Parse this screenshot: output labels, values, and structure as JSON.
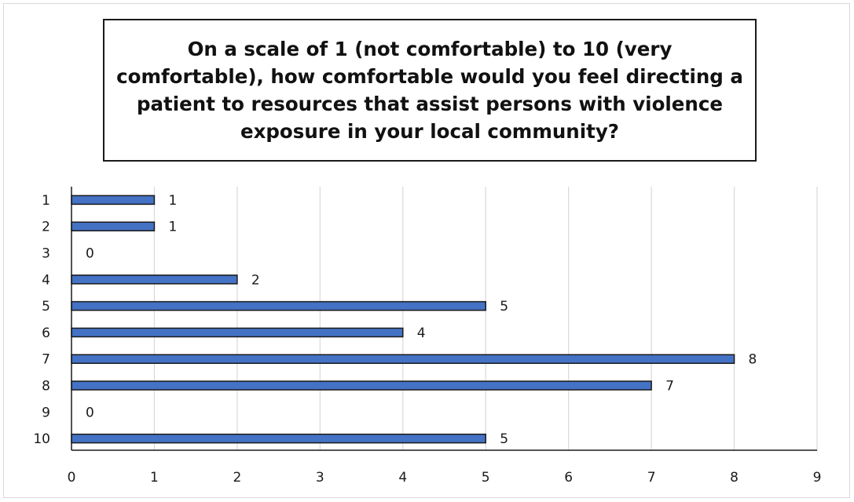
{
  "chart_data": {
    "type": "bar",
    "orientation": "horizontal",
    "title": "On a scale of 1 (not comfortable) to 10 (very comfortable), how comfortable would you feel directing a patient to resources that assist persons with violence exposure in your local community?",
    "xlabel": "",
    "ylabel": "",
    "categories": [
      "1",
      "2",
      "3",
      "4",
      "5",
      "6",
      "7",
      "8",
      "9",
      "10"
    ],
    "values": [
      1,
      1,
      0,
      2,
      5,
      4,
      8,
      7,
      0,
      5
    ],
    "data_labels": [
      "1",
      "1",
      "0",
      "2",
      "5",
      "4",
      "8",
      "7",
      "0",
      "5"
    ],
    "xlim": [
      0,
      9
    ],
    "x_ticks": [
      "0",
      "1",
      "2",
      "3",
      "4",
      "5",
      "6",
      "7",
      "8",
      "9"
    ],
    "grid": "vertical",
    "legend": "none",
    "colors": {
      "bar_fill": "#4472c4",
      "bar_stroke": "#1a1a1a",
      "grid": "#d9d9d9",
      "axis": "#1a1a1a"
    }
  }
}
